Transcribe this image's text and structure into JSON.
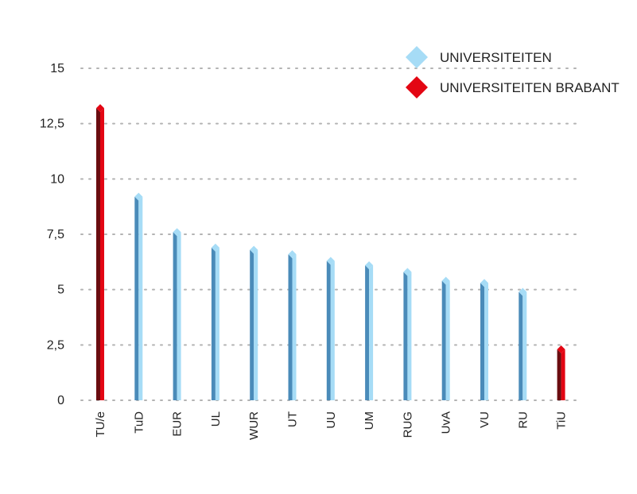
{
  "chart_data": {
    "type": "bar",
    "categories": [
      "TU/e",
      "TuD",
      "EUR",
      "UL",
      "WUR",
      "UT",
      "UU",
      "UM",
      "RUG",
      "UvA",
      "VU",
      "RU",
      "TiU"
    ],
    "values": [
      13.2,
      9.2,
      7.6,
      6.9,
      6.8,
      6.6,
      6.3,
      6.1,
      5.8,
      5.4,
      5.3,
      4.9,
      2.3
    ],
    "groups": [
      "brabant",
      "universiteiten",
      "universiteiten",
      "universiteiten",
      "universiteiten",
      "universiteiten",
      "universiteiten",
      "universiteiten",
      "universiteiten",
      "universiteiten",
      "universiteiten",
      "universiteiten",
      "brabant"
    ],
    "yticks": [
      "0",
      "2,5",
      "5",
      "7,5",
      "10",
      "12,5",
      "15"
    ],
    "ytick_values": [
      0,
      2.5,
      5,
      7.5,
      10,
      12.5,
      15
    ],
    "ylim": [
      0,
      15
    ],
    "grid": true,
    "legend_position": "top-right",
    "legend": [
      {
        "key": "universiteiten",
        "label": "UNIVERSITEITEN",
        "color": "#a6dcf6"
      },
      {
        "key": "brabant",
        "label": "UNIVERSITEITEN BRABANT",
        "color": "#e30613"
      }
    ],
    "colors": {
      "universiteiten": {
        "light": "#a6dcf6",
        "dark": "#4a8bb9"
      },
      "brabant": {
        "light": "#e30613",
        "dark": "#6b0c10"
      }
    }
  }
}
